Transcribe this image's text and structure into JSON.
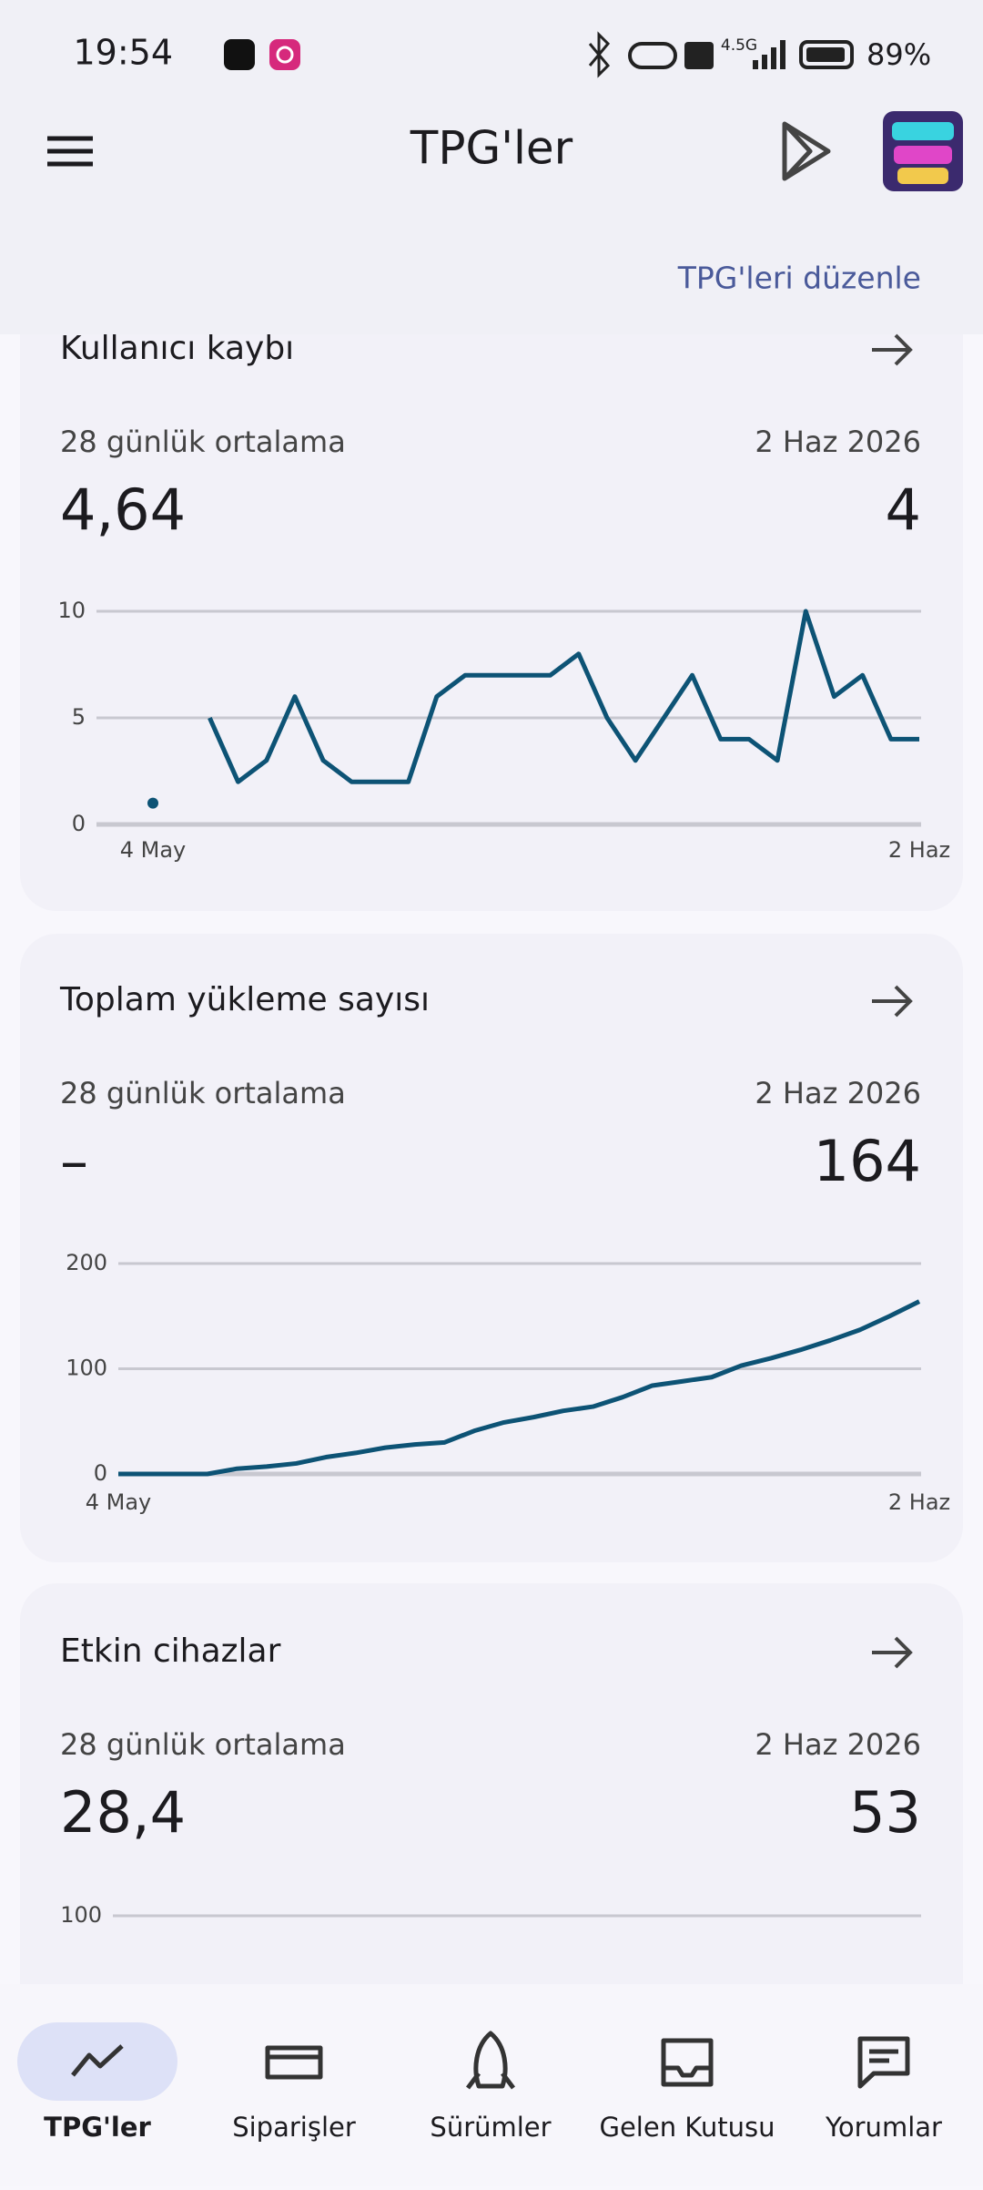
{
  "status_bar": {
    "time": "19:54",
    "network": "4.5G",
    "battery": "89%"
  },
  "header": {
    "title": "TPG'ler",
    "edit_link": "TPG'leri düzenle"
  },
  "cards": [
    {
      "title": "Kullanıcı kaybı",
      "avg_label": "28 günlük ortalama",
      "avg_value": "4,64",
      "date_label": "2 Haz 2026",
      "date_value": "4",
      "chart": {
        "type": "line",
        "color": "#0d5375",
        "x": [
          "4 May",
          null,
          null,
          null,
          null,
          null,
          null,
          null,
          null,
          null,
          null,
          null,
          null,
          null,
          null,
          null,
          null,
          null,
          null,
          null,
          null,
          null,
          null,
          null,
          null,
          null,
          null,
          "2 Haz"
        ],
        "values": [
          1,
          null,
          5,
          2,
          3,
          6,
          3,
          2,
          2,
          2,
          6,
          7,
          7,
          7,
          7,
          8,
          5,
          3,
          5,
          7,
          4,
          4,
          3,
          10,
          6,
          7,
          4,
          4
        ],
        "ylim": [
          0,
          10
        ],
        "yticks": [
          0,
          5,
          10
        ],
        "grid": true
      }
    },
    {
      "title": "Toplam yükleme sayısı",
      "avg_label": "28 günlük ortalama",
      "avg_value": "–",
      "date_label": "2 Haz 2026",
      "date_value": "164",
      "chart": {
        "type": "line",
        "color": "#0d5375",
        "x": [
          "4 May",
          null,
          null,
          null,
          null,
          null,
          null,
          null,
          null,
          null,
          null,
          null,
          null,
          null,
          null,
          null,
          null,
          null,
          null,
          null,
          null,
          null,
          null,
          null,
          null,
          null,
          null,
          "2 Haz"
        ],
        "values": [
          0,
          0,
          0,
          0,
          5,
          7,
          10,
          16,
          20,
          25,
          28,
          30,
          41,
          49,
          54,
          60,
          64,
          73,
          84,
          88,
          92,
          103,
          110,
          118,
          127,
          137,
          150,
          164
        ],
        "ylim": [
          0,
          200
        ],
        "yticks": [
          0,
          100,
          200
        ],
        "grid": true
      }
    },
    {
      "title": "Etkin cihazlar",
      "avg_label": "28 günlük ortalama",
      "avg_value": "28,4",
      "date_label": "2 Haz 2026",
      "date_value": "53",
      "chart": {
        "type": "line",
        "yticks": [
          100
        ],
        "grid": true
      }
    }
  ],
  "nav": [
    {
      "label": "TPG'ler",
      "selected": true
    },
    {
      "label": "Siparişler"
    },
    {
      "label": "Sürümler"
    },
    {
      "label": "Gelen Kutusu"
    },
    {
      "label": "Yorumlar"
    }
  ]
}
